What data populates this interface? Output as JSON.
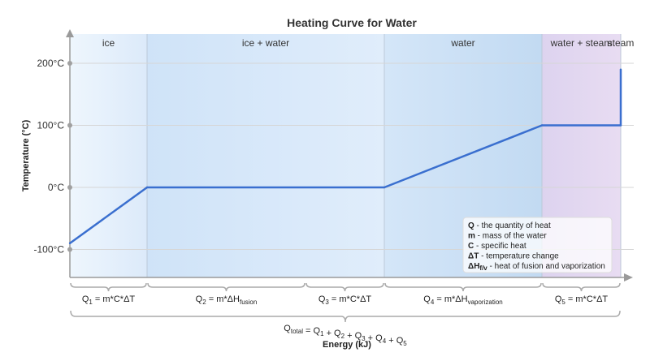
{
  "chart_data": {
    "type": "line",
    "title": "Heating Curve for Water",
    "xlabel": "Energy (kJ)",
    "ylabel": "Temperature (°C)",
    "ylim": [
      -150,
      250
    ],
    "yticks": [
      {
        "value": -100,
        "label": "-100°C"
      },
      {
        "value": 0,
        "label": "0°C"
      },
      {
        "value": 100,
        "label": "100°C"
      },
      {
        "value": 200,
        "label": "200°C"
      }
    ],
    "grid": true,
    "phases": [
      {
        "label": "ice",
        "x_start": 0,
        "x_end": 1,
        "color": "#e3f0fb"
      },
      {
        "label": "ice + water",
        "x_start": 1,
        "x_end": 3,
        "color": "#cfe3f7"
      },
      {
        "label": "water",
        "x_start": 3,
        "x_end": 4,
        "color": "#c4dcf3"
      },
      {
        "label": "water + steam",
        "x_start": 4,
        "x_end": 6,
        "color": "#e4d7f0"
      },
      {
        "label": "steam",
        "x_start": 6,
        "x_end": 7,
        "color": "#eed2ec"
      }
    ],
    "series": [
      {
        "color": "#3a6fcf",
        "x": [
          0,
          1,
          3,
          4,
          6,
          7
        ],
        "y": [
          -90,
          0,
          0,
          100,
          100,
          190
        ]
      }
    ],
    "equations": [
      {
        "base": "Q",
        "sub": "1",
        "rest": " = m*C*ΔT",
        "rest_sub": ""
      },
      {
        "base": "Q",
        "sub": "2",
        "rest": " = m*ΔH",
        "rest_sub": "fusion"
      },
      {
        "base": "Q",
        "sub": "3",
        "rest": " = m*C*ΔT",
        "rest_sub": ""
      },
      {
        "base": "Q",
        "sub": "4",
        "rest": " = m*ΔH",
        "rest_sub": "vaporization"
      },
      {
        "base": "Q",
        "sub": "5",
        "rest": " = m*C*ΔT",
        "rest_sub": ""
      }
    ],
    "total_equation": "Q<sub>total</sub> = Q<sub>1</sub> + Q<sub>2</sub> + Q<sub>3</sub> + Q<sub>4</sub> + Q<sub>5</sub>",
    "legend": [
      {
        "term": "Q",
        "desc": " - the quantity of heat"
      },
      {
        "term": "m",
        "desc": " - mass of the water"
      },
      {
        "term": "C",
        "desc": " - specific heat"
      },
      {
        "term": "ΔT",
        "desc": " - temperature change"
      },
      {
        "term": "ΔH",
        "term_sub": "f/v",
        "desc": " - heat of fusion and vaporization"
      }
    ]
  }
}
